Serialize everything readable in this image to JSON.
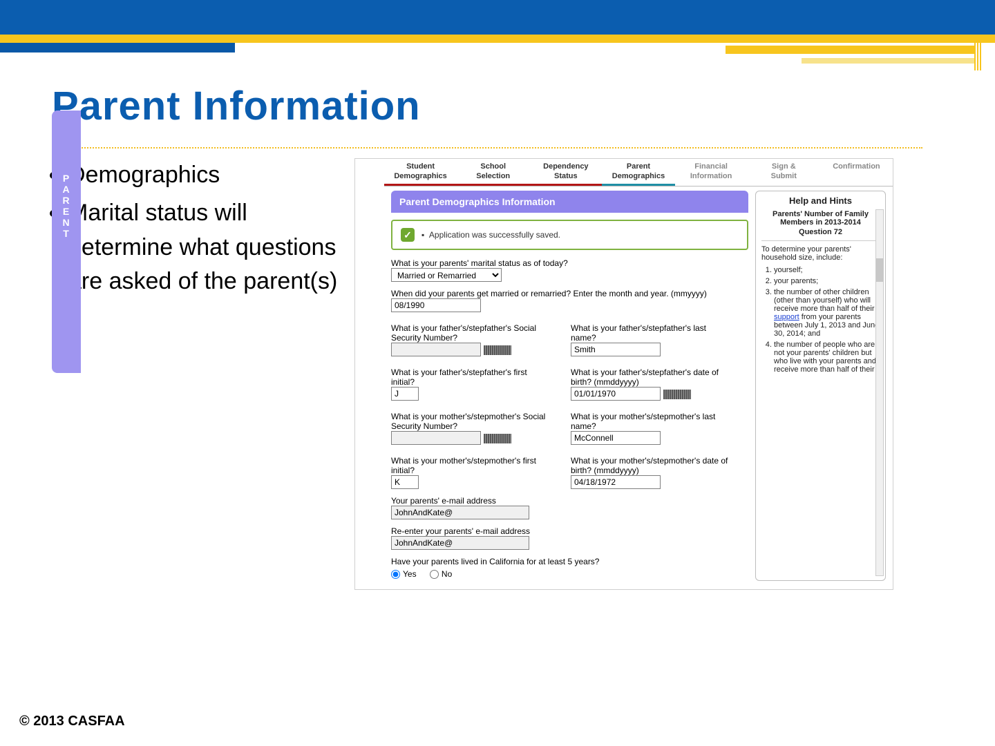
{
  "colors": {
    "brand_blue": "#0b5daf",
    "brand_gold": "#f7c51e",
    "panel_purple": "#8f84ec",
    "side_purple": "#9f95f0",
    "success_green": "#7fb240"
  },
  "slide": {
    "title": "Parent Information",
    "bullets": [
      "Demographics",
      "Marital status will determine what questions are asked of the parent(s)"
    ],
    "copyright": "© 2013 CASFAA"
  },
  "tabs": [
    {
      "label_l1": "Student",
      "label_l2": "Demographics",
      "state": "red"
    },
    {
      "label_l1": "School",
      "label_l2": "Selection",
      "state": "red"
    },
    {
      "label_l1": "Dependency",
      "label_l2": "Status",
      "state": "red"
    },
    {
      "label_l1": "Parent",
      "label_l2": "Demographics",
      "state": "active"
    },
    {
      "label_l1": "Financial",
      "label_l2": "Information",
      "state": "inactive"
    },
    {
      "label_l1": "Sign &",
      "label_l2": "Submit",
      "state": "inactive"
    },
    {
      "label_l1": "Confirmation",
      "label_l2": "",
      "state": "inactive"
    }
  ],
  "side_label": "PARENT",
  "panel_title": "Parent Demographics Information",
  "saved_message": "Application was successfully saved.",
  "form": {
    "marital_q": "What is your parents' marital status as of today?",
    "marital_value": "Married or Remarried",
    "married_date_q": "When did your parents get married or remarried? Enter the month and year. (mmyyyy)",
    "married_date_value": "08/1990",
    "father_ssn_q": "What is your father's/stepfather's Social Security Number?",
    "father_ssn_value": "",
    "father_last_q": "What is your father's/stepfather's last name?",
    "father_last_value": "Smith",
    "father_initial_q": "What is your father's/stepfather's first initial?",
    "father_initial_value": "J",
    "father_dob_q": "What is your father's/stepfather's date of birth? (mmddyyyy)",
    "father_dob_value": "01/01/1970",
    "mother_ssn_q": "What is your mother's/stepmother's Social Security Number?",
    "mother_ssn_value": "",
    "mother_last_q": "What is your mother's/stepmother's last name?",
    "mother_last_value": "McConnell",
    "mother_initial_q": "What is your mother's/stepmother's first initial?",
    "mother_initial_value": "K",
    "mother_dob_q": "What is your mother's/stepmother's date of birth? (mmddyyyy)",
    "mother_dob_value": "04/18/1972",
    "email_q": "Your parents' e-mail address",
    "email_value": "JohnAndKate@",
    "email2_q": "Re-enter your parents' e-mail address",
    "email2_value": "JohnAndKate@",
    "ca_q": "Have your parents lived in California for at least 5 years?",
    "ca_yes": "Yes",
    "ca_no": "No"
  },
  "help": {
    "title": "Help and Hints",
    "subtitle": "Parents' Number of Family Members in 2013-2014",
    "question_num": "Question 72",
    "intro": "To determine your parents' household size, include:",
    "items": [
      "yourself;",
      "your parents;",
      "the number of other children (other than yourself) who will receive more than half of their support from your parents between July 1, 2013 and June 30, 2014; and",
      "the number of people who are not your parents' children but who live with your parents and receive more than half of their"
    ],
    "link_word": "support"
  }
}
